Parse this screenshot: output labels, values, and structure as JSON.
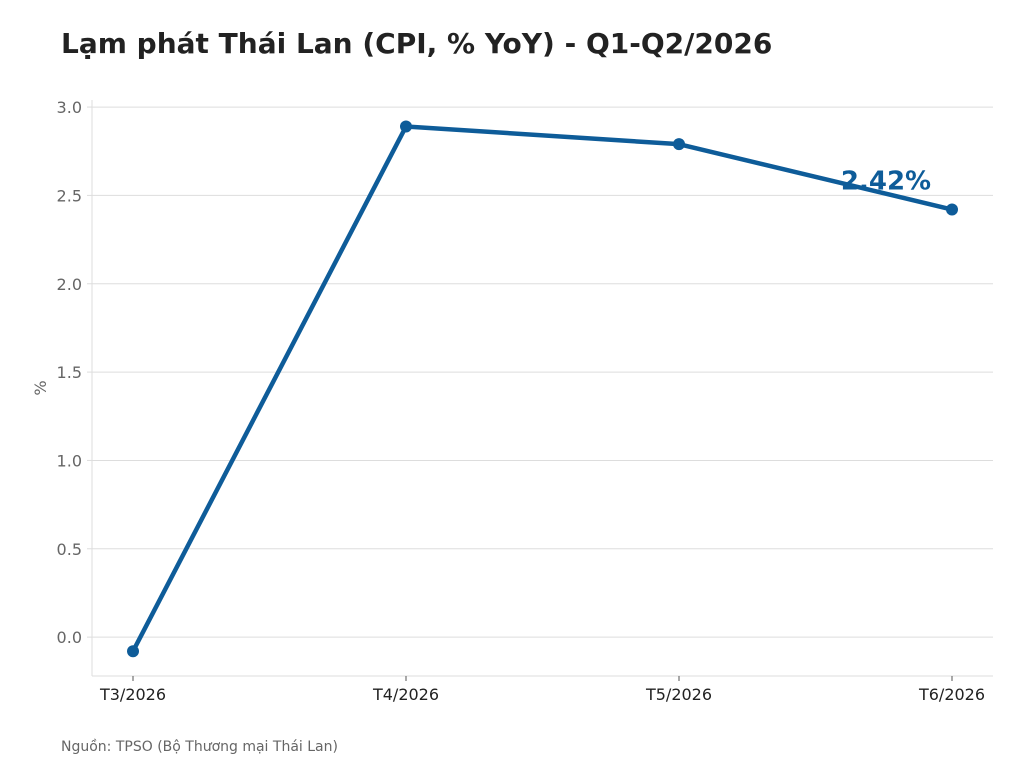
{
  "chart_data": {
    "type": "line",
    "title": "Lạm phát Thái Lan (CPI, % YoY) - Q1-Q2/2026",
    "xlabel": "",
    "ylabel": "%",
    "categories": [
      "T3/2026",
      "T4/2026",
      "T5/2026",
      "T6/2026"
    ],
    "series": [
      {
        "values": [
          -0.08,
          2.89,
          2.79,
          2.42
        ]
      }
    ],
    "ylim": [
      -0.22,
      3.04
    ],
    "yticks": [
      0.0,
      0.5,
      1.0,
      1.5,
      2.0,
      2.5,
      3.0
    ],
    "ytick_labels": [
      "0.0",
      "0.5",
      "1.0",
      "1.5",
      "2.0",
      "2.5",
      "3.0"
    ],
    "annotation": {
      "text": "2.42%",
      "category": "T6/2026"
    },
    "grid": "horizontal",
    "legend": "none",
    "source": "Nguồn: TPSO (Bộ Thương mại Thái Lan)",
    "colors": {
      "line": "#0e5c99",
      "annotation": "#0e5c99",
      "grid": "#dddddd",
      "axis": "#dddddd",
      "tick_label": "#666666",
      "category_label": "#222222",
      "title": "#222222"
    }
  }
}
